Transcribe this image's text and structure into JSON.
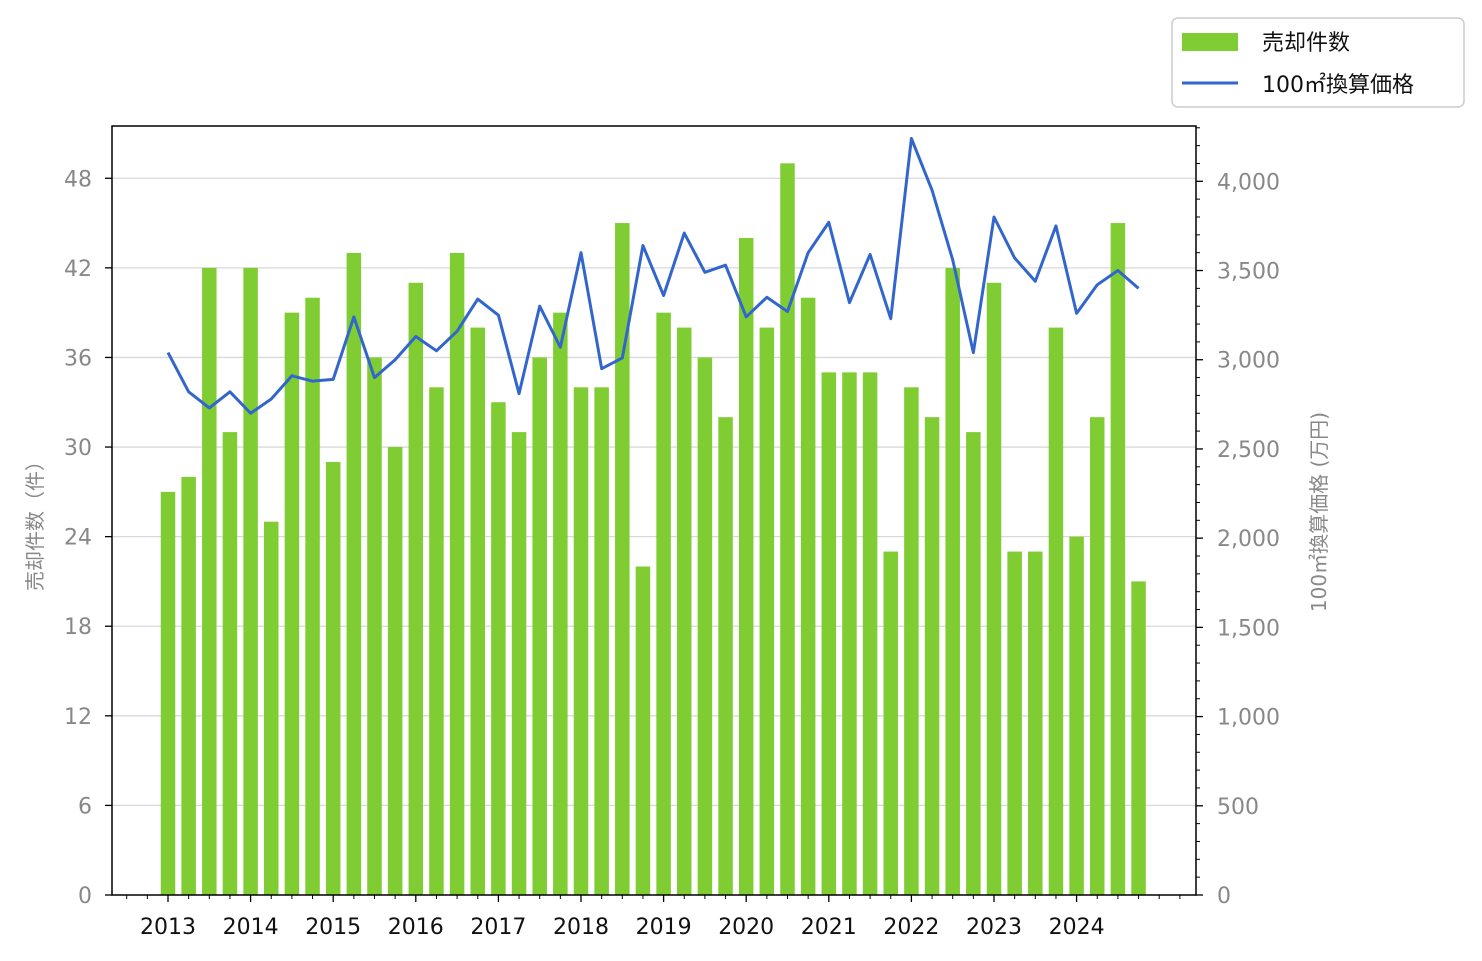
{
  "chart_data": {
    "type": "bar+line",
    "x_tick_labels": [
      "2013",
      "2014",
      "2015",
      "2016",
      "2017",
      "2018",
      "2019",
      "2020",
      "2021",
      "2022",
      "2023",
      "2024"
    ],
    "quarters": [
      "2013Q1",
      "2013Q2",
      "2013Q3",
      "2013Q4",
      "2014Q1",
      "2014Q2",
      "2014Q3",
      "2014Q4",
      "2015Q1",
      "2015Q2",
      "2015Q3",
      "2015Q4",
      "2016Q1",
      "2016Q2",
      "2016Q3",
      "2016Q4",
      "2017Q1",
      "2017Q2",
      "2017Q3",
      "2017Q4",
      "2018Q1",
      "2018Q2",
      "2018Q3",
      "2018Q4",
      "2019Q1",
      "2019Q2",
      "2019Q3",
      "2019Q4",
      "2020Q1",
      "2020Q2",
      "2020Q3",
      "2020Q4",
      "2021Q1",
      "2021Q2",
      "2021Q3",
      "2021Q4",
      "2022Q1",
      "2022Q2",
      "2022Q3",
      "2022Q4",
      "2023Q1",
      "2023Q2",
      "2023Q3",
      "2023Q4",
      "2024Q1",
      "2024Q2",
      "2024Q3",
      "2024Q4"
    ],
    "series": [
      {
        "name": "売却件数",
        "type": "bar",
        "axis": "left",
        "color": "#80cc33",
        "values": [
          27,
          28,
          42,
          31,
          42,
          25,
          39,
          40,
          29,
          43,
          36,
          30,
          41,
          34,
          43,
          38,
          33,
          31,
          36,
          39,
          34,
          34,
          45,
          22,
          39,
          38,
          36,
          32,
          44,
          38,
          49,
          40,
          35,
          35,
          35,
          23,
          34,
          32,
          42,
          31,
          41,
          23,
          23,
          38,
          24,
          32,
          45,
          21
        ]
      },
      {
        "name": "100㎡換算価格",
        "type": "line",
        "axis": "right",
        "color": "#3366cc",
        "values": [
          3040,
          2820,
          2730,
          2820,
          2700,
          2780,
          2910,
          2880,
          2890,
          3240,
          2900,
          3000,
          3130,
          3050,
          3160,
          3340,
          3250,
          2810,
          3300,
          3070,
          3600,
          2950,
          3010,
          3640,
          3360,
          3710,
          3490,
          3530,
          3240,
          3350,
          3270,
          3600,
          3770,
          3320,
          3590,
          3230,
          4240,
          3950,
          3560,
          3040,
          3800,
          3570,
          3440,
          3750,
          3260,
          3420,
          3500,
          3400
        ]
      }
    ],
    "left_axis": {
      "label": "売却件数（件）",
      "ylim": [
        0,
        51.5
      ],
      "ticks": [
        "0",
        "6",
        "12",
        "18",
        "24",
        "30",
        "36",
        "42",
        "48"
      ],
      "tick_values": [
        0,
        6,
        12,
        18,
        24,
        30,
        36,
        42,
        48
      ],
      "grid": true
    },
    "right_axis": {
      "label": "100㎡換算価格 (万円)",
      "ylim": [
        0,
        4310
      ],
      "ticks": [
        "0",
        "500",
        "1,000",
        "1,500",
        "2,000",
        "2,500",
        "3,000",
        "3,500",
        "4,000"
      ],
      "tick_values": [
        0,
        500,
        1000,
        1500,
        2000,
        2500,
        3000,
        3500,
        4000
      ],
      "minor_step": 100
    },
    "legend": {
      "placement": "top-right, outside plot",
      "entries": [
        "売却件数",
        "100㎡換算価格"
      ]
    }
  }
}
